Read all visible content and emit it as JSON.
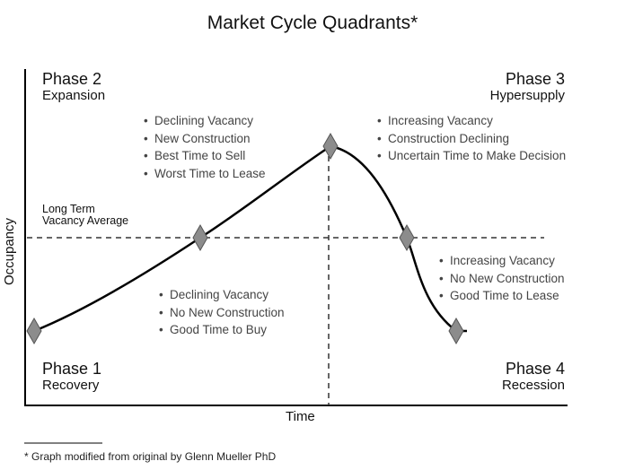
{
  "title": "Market Cycle Quadrants*",
  "axes": {
    "x_label": "Time",
    "y_label": "Occupancy"
  },
  "reference_line": {
    "label_line1": "Long Term",
    "label_line2": "Vacancy Average"
  },
  "phases": [
    {
      "name": "Phase 1",
      "subtitle": "Recovery",
      "bullets": [
        "Declining Vacancy",
        "No New Construction",
        "Good Time to Buy"
      ]
    },
    {
      "name": "Phase 2",
      "subtitle": "Expansion",
      "bullets": [
        "Declining Vacancy",
        "New Construction",
        "Best Time to Sell",
        "Worst Time to Lease"
      ]
    },
    {
      "name": "Phase 3",
      "subtitle": "Hypersupply",
      "bullets": [
        "Increasing Vacancy",
        "Construction Declining",
        "Uncertain Time to Make Decision"
      ]
    },
    {
      "name": "Phase 4",
      "subtitle": "Recession",
      "bullets": [
        "Increasing Vacancy",
        "No New Construction",
        "Good Time to Lease"
      ]
    }
  ],
  "footnote": "* Graph modified from original by Glenn Mueller PhD",
  "colors": {
    "curve": "#000000",
    "marker_fill": "#8c8c8c",
    "marker_stroke": "#555555",
    "bullet_text": "#444444"
  }
}
